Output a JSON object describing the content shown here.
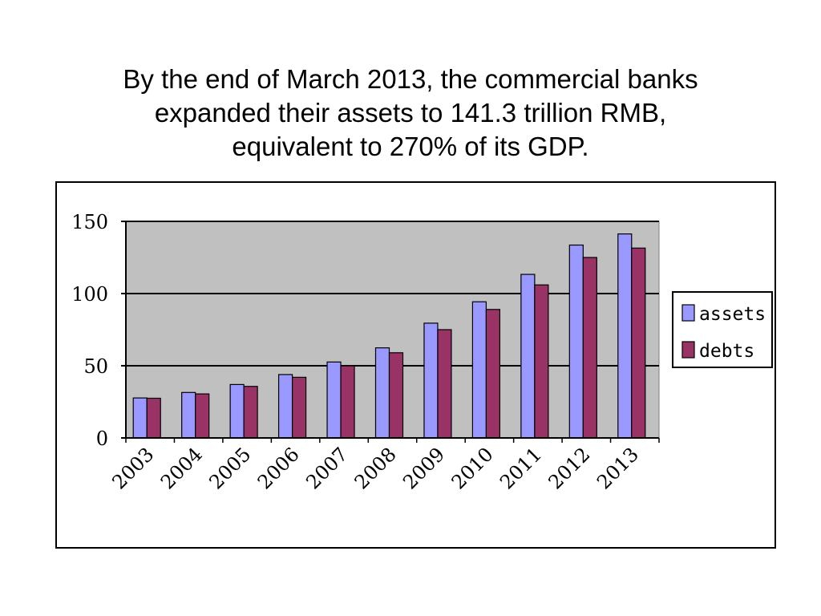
{
  "title_lines": [
    "By the end of March 2013, the commercial banks",
    "expanded their assets to 141.3 trillion RMB,",
    "equivalent to 270% of its GDP."
  ],
  "colors": {
    "assets": "#9999ff",
    "debts": "#993366",
    "plot_background": "#c0c0c0"
  },
  "chart_data": {
    "type": "bar",
    "title": "",
    "xlabel": "",
    "ylabel": "",
    "categories": [
      "2003",
      "2004",
      "2005",
      "2006",
      "2007",
      "2008",
      "2009",
      "2010",
      "2011",
      "2012",
      "2013"
    ],
    "series": [
      {
        "name": "assets",
        "values": [
          27.7,
          31.5,
          37.0,
          43.9,
          52.6,
          62.4,
          79.5,
          94.3,
          113.3,
          133.6,
          141.3
        ]
      },
      {
        "name": "debts",
        "values": [
          27.5,
          30.5,
          35.7,
          42.0,
          49.9,
          59.0,
          75.0,
          89.0,
          106.0,
          125.0,
          131.5
        ]
      }
    ],
    "ylim": [
      0,
      150
    ],
    "yticks": [
      0,
      50,
      100,
      150
    ],
    "grid": true,
    "legend_position": "right"
  }
}
